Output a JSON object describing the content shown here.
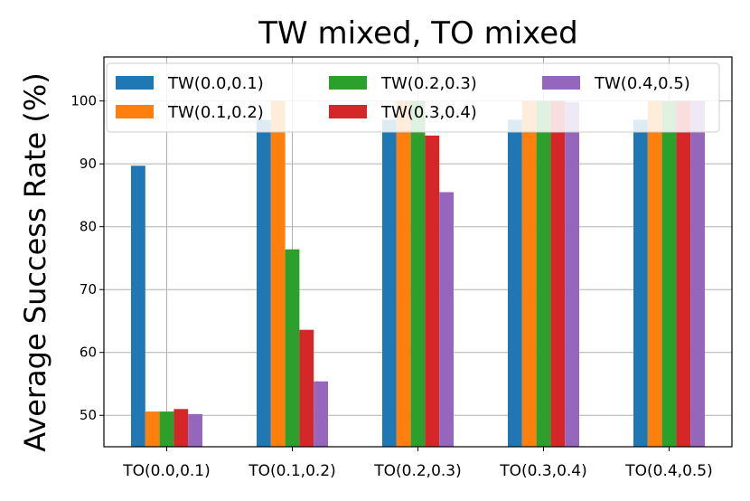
{
  "chart_data": {
    "type": "bar",
    "title": "TW mixed, TO mixed",
    "xlabel": "",
    "ylabel": "Average Success Rate (%)",
    "ylim": [
      45,
      107
    ],
    "yticks": [
      50,
      60,
      70,
      80,
      90,
      100
    ],
    "grid": true,
    "legend_placement": "top",
    "categories": [
      "TO(0.0,0.1)",
      "TO(0.1,0.2)",
      "TO(0.2,0.3)",
      "TO(0.3,0.4)",
      "TO(0.4,0.5)"
    ],
    "series": [
      {
        "name": "TW(0.0,0.1)",
        "color": "#1f77b4",
        "values": [
          89.7,
          97.0,
          97.0,
          97.0,
          97.0
        ]
      },
      {
        "name": "TW(0.1,0.2)",
        "color": "#ff7f0e",
        "values": [
          50.6,
          100.0,
          100.0,
          100.0,
          100.0
        ]
      },
      {
        "name": "TW(0.2,0.3)",
        "color": "#2ca02c",
        "values": [
          50.6,
          76.4,
          100.0,
          100.0,
          100.0
        ]
      },
      {
        "name": "TW(0.3,0.4)",
        "color": "#d62728",
        "values": [
          51.0,
          63.6,
          94.5,
          100.0,
          100.0
        ]
      },
      {
        "name": "TW(0.4,0.5)",
        "color": "#9467bd",
        "values": [
          50.2,
          55.4,
          85.5,
          99.8,
          100.0
        ]
      }
    ]
  }
}
